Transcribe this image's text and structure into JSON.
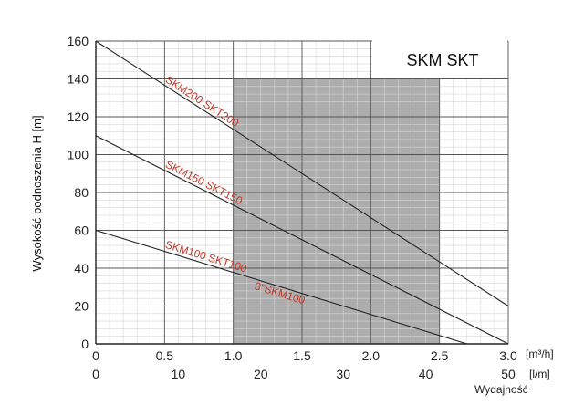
{
  "chart_data": {
    "type": "line",
    "title": "SKM SKT",
    "ylabel": "Wysokość podnoszenia H [m]",
    "xlabel": "Wydajność",
    "x_unit_primary": "[m³/h]",
    "x_unit_secondary": "[l/m]",
    "xlim": [
      0,
      3.0
    ],
    "ylim": [
      0,
      160
    ],
    "x_ticks": [
      "0",
      "0.5",
      "1.0",
      "1.5",
      "2.0",
      "2.5",
      "3.0"
    ],
    "x_ticks_secondary": [
      "0",
      "10",
      "20",
      "30",
      "40",
      "50"
    ],
    "y_ticks": [
      "0",
      "20",
      "40",
      "60",
      "80",
      "100",
      "120",
      "140",
      "160"
    ],
    "shaded_region": {
      "x": [
        1.0,
        2.5
      ],
      "y": [
        0,
        140
      ]
    },
    "grid": true,
    "series": [
      {
        "name": "SKM200 SKT200",
        "x": [
          0,
          3.0
        ],
        "y": [
          160,
          20
        ]
      },
      {
        "name": "SKM150 SKT150",
        "x": [
          0,
          3.0
        ],
        "y": [
          110,
          0
        ]
      },
      {
        "name": "SKM100 SKT100",
        "x": [
          0,
          2.7
        ],
        "y": [
          60,
          0
        ]
      }
    ],
    "annotations": [
      {
        "text": "3\"SKM100",
        "x": 1.15,
        "y": 29
      }
    ],
    "colors": {
      "curve_label": "#c0392b",
      "shade": "#a9a9a9",
      "line": "#222222"
    }
  }
}
